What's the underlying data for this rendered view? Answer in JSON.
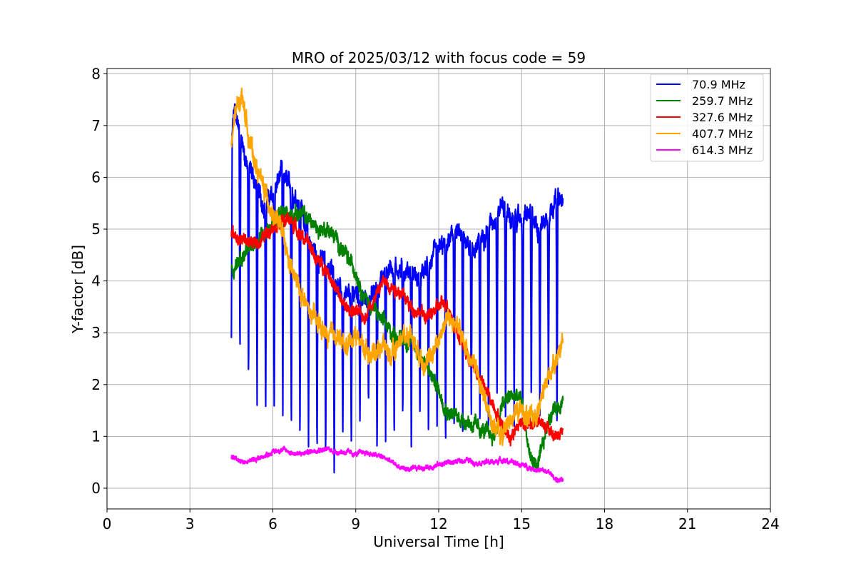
{
  "chart_data": {
    "type": "line",
    "title": "MRO of 2025/03/12 with focus code = 59",
    "xlabel": "Universal Time [h]",
    "ylabel": "Y-factor [dB]",
    "xlim": [
      0,
      24
    ],
    "ylim": [
      -0.4,
      8.1
    ],
    "xticks": [
      0,
      3,
      6,
      9,
      12,
      15,
      18,
      21,
      24
    ],
    "yticks": [
      0,
      1,
      2,
      3,
      4,
      5,
      6,
      7,
      8
    ],
    "grid": true,
    "legend_position": "top-right",
    "series": [
      {
        "name": " 70.9 MHz",
        "color": "#0000ff",
        "noise": 0.15,
        "dip_every": 0.31,
        "dip_floor": [
          2.9,
          2.5,
          2.0,
          1.6,
          1.3,
          1.3,
          1.4,
          1.0,
          0.8,
          0.8,
          0.6,
          0.5,
          0.3,
          0.9,
          0.7,
          1.3,
          1.6,
          0.6,
          0.9,
          0.9,
          1.3,
          0.8,
          1.3,
          0.9,
          1.2,
          0.7,
          1.0,
          1.1,
          1.2,
          1.1,
          1.2,
          1.6,
          1.1,
          1.2,
          1.2,
          1.6,
          1.4,
          1.8,
          1.0
        ],
        "x": [
          4.5,
          4.6,
          4.8,
          5.0,
          5.3,
          5.6,
          6.0,
          6.3,
          6.6,
          7.0,
          7.3,
          7.6,
          8.0,
          8.3,
          8.6,
          9.0,
          9.3,
          9.6,
          10.0,
          10.3,
          10.6,
          11.0,
          11.3,
          11.6,
          12.0,
          12.3,
          12.6,
          13.0,
          13.3,
          13.6,
          14.0,
          14.3,
          14.6,
          15.0,
          15.3,
          15.6,
          16.0,
          16.2,
          16.5
        ],
        "values": [
          6.6,
          7.3,
          6.9,
          6.4,
          6.0,
          5.5,
          5.6,
          6.1,
          5.8,
          5.5,
          4.8,
          4.5,
          4.3,
          4.0,
          3.6,
          3.8,
          3.6,
          3.7,
          4.1,
          4.3,
          4.2,
          4.2,
          4.0,
          4.3,
          4.6,
          4.7,
          4.9,
          4.8,
          4.6,
          4.9,
          5.2,
          5.5,
          5.2,
          5.2,
          5.3,
          5.0,
          5.3,
          5.6,
          5.5
        ]
      },
      {
        "name": "259.7 MHz",
        "color": "#008000",
        "noise": 0.12,
        "x": [
          4.5,
          4.8,
          5.0,
          5.3,
          5.6,
          6.0,
          6.3,
          6.6,
          7.0,
          7.3,
          7.6,
          8.0,
          8.3,
          8.6,
          9.0,
          9.3,
          9.6,
          10.0,
          10.3,
          10.6,
          11.0,
          11.3,
          11.6,
          12.0,
          12.3,
          12.6,
          13.0,
          13.3,
          13.6,
          14.0,
          14.3,
          14.6,
          15.0,
          15.3,
          15.6,
          16.0,
          16.3,
          16.5
        ],
        "values": [
          4.2,
          4.4,
          4.5,
          4.7,
          4.9,
          5.1,
          5.3,
          5.3,
          5.3,
          5.2,
          5.0,
          5.0,
          4.8,
          4.5,
          4.2,
          3.7,
          3.5,
          3.2,
          3.0,
          2.9,
          2.8,
          2.6,
          2.3,
          1.9,
          1.5,
          1.4,
          1.3,
          1.2,
          1.1,
          1.0,
          1.6,
          1.8,
          1.7,
          0.6,
          0.4,
          1.4,
          1.6,
          1.7
        ]
      },
      {
        "name": "327.6 MHz",
        "color": "#ff0000",
        "noise": 0.1,
        "x": [
          4.5,
          4.8,
          5.0,
          5.3,
          5.6,
          6.0,
          6.3,
          6.6,
          7.0,
          7.3,
          7.6,
          8.0,
          8.3,
          8.6,
          9.0,
          9.3,
          9.6,
          10.0,
          10.3,
          10.6,
          11.0,
          11.3,
          11.6,
          12.0,
          12.3,
          12.6,
          13.0,
          13.3,
          13.6,
          14.0,
          14.3,
          14.6,
          15.0,
          15.3,
          15.6,
          16.0,
          16.3,
          16.5
        ],
        "values": [
          4.9,
          4.8,
          4.8,
          4.7,
          4.8,
          5.1,
          5.1,
          5.2,
          4.9,
          4.7,
          4.4,
          4.2,
          3.8,
          3.5,
          3.4,
          3.3,
          3.6,
          4.0,
          3.9,
          3.8,
          3.5,
          3.4,
          3.3,
          3.5,
          3.6,
          3.1,
          2.6,
          2.3,
          2.0,
          1.6,
          1.2,
          1.0,
          1.3,
          1.2,
          1.3,
          1.1,
          1.0,
          1.1
        ]
      },
      {
        "name": "407.7 MHz",
        "color": "#ffa500",
        "noise": 0.15,
        "x": [
          4.5,
          4.6,
          4.8,
          4.9,
          5.0,
          5.2,
          5.4,
          5.6,
          5.8,
          6.0,
          6.3,
          6.6,
          7.0,
          7.3,
          7.6,
          8.0,
          8.3,
          8.6,
          9.0,
          9.3,
          9.6,
          10.0,
          10.3,
          10.6,
          11.0,
          11.3,
          11.6,
          12.0,
          12.3,
          12.6,
          13.0,
          13.3,
          13.6,
          14.0,
          14.3,
          14.6,
          15.0,
          15.3,
          15.6,
          16.0,
          16.3,
          16.5
        ],
        "values": [
          6.5,
          7.1,
          7.5,
          7.6,
          7.2,
          6.6,
          6.2,
          5.9,
          5.6,
          5.3,
          5.0,
          4.3,
          3.8,
          3.4,
          3.2,
          2.9,
          3.0,
          2.7,
          3.0,
          2.7,
          2.6,
          2.8,
          2.5,
          2.9,
          3.0,
          2.6,
          2.4,
          2.9,
          3.3,
          3.2,
          2.7,
          2.4,
          1.8,
          1.2,
          1.0,
          1.4,
          1.5,
          1.3,
          1.5,
          2.2,
          2.6,
          2.8
        ]
      },
      {
        "name": "614.3 MHz",
        "color": "#ff00ff",
        "noise": 0.04,
        "x": [
          4.5,
          4.8,
          5.0,
          5.3,
          5.6,
          6.0,
          6.3,
          6.6,
          7.0,
          7.3,
          7.6,
          8.0,
          8.3,
          8.6,
          9.0,
          9.3,
          9.6,
          10.0,
          10.3,
          10.6,
          11.0,
          11.3,
          11.6,
          12.0,
          12.3,
          12.6,
          13.0,
          13.3,
          13.6,
          14.0,
          14.3,
          14.6,
          15.0,
          15.3,
          15.6,
          16.0,
          16.3,
          16.5
        ],
        "values": [
          0.6,
          0.55,
          0.5,
          0.55,
          0.6,
          0.7,
          0.75,
          0.7,
          0.65,
          0.7,
          0.75,
          0.75,
          0.7,
          0.7,
          0.65,
          0.7,
          0.65,
          0.6,
          0.5,
          0.4,
          0.35,
          0.4,
          0.4,
          0.45,
          0.5,
          0.5,
          0.55,
          0.5,
          0.5,
          0.5,
          0.55,
          0.5,
          0.45,
          0.4,
          0.35,
          0.3,
          0.15,
          0.15
        ]
      }
    ]
  }
}
